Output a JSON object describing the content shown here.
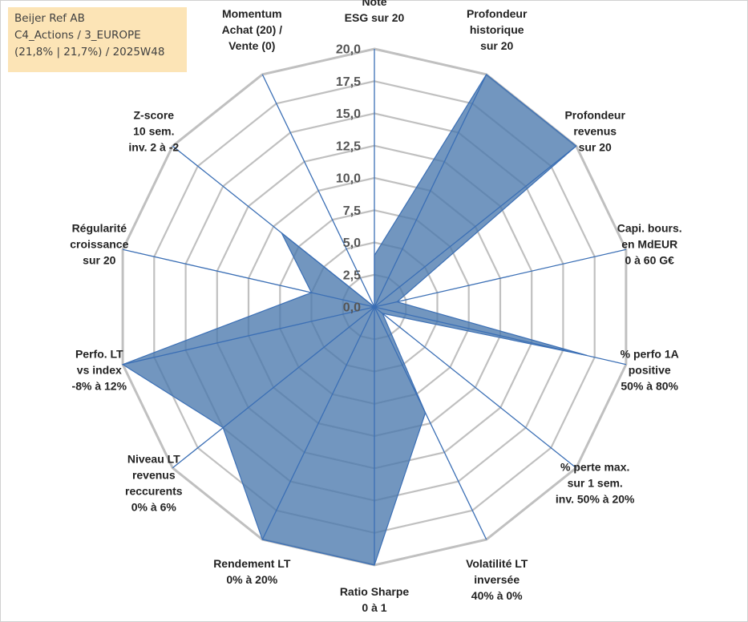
{
  "info": {
    "line1": "Beijer Ref AB",
    "line2": "C4_Actions / 3_EUROPE",
    "line3": "(21,8% | 21,7%) / 2025W48"
  },
  "chart_data": {
    "type": "radar",
    "title": "",
    "scale": {
      "min": 0,
      "max": 20,
      "step": 2.5
    },
    "tick_labels": [
      "0,0",
      "2,5",
      "5,0",
      "7,5",
      "10,0",
      "12,5",
      "15,0",
      "17,5",
      "20,0"
    ],
    "axes": [
      {
        "label": [
          "Note",
          "ESG sur 20"
        ],
        "value": 4.0
      },
      {
        "label": [
          "Profondeur",
          "historique",
          "sur 20"
        ],
        "value": 20.0
      },
      {
        "label": [
          "Profondeur",
          "revenus",
          "sur 20"
        ],
        "value": 20.0
      },
      {
        "label": [
          "Capi. bours.",
          "en MdEUR",
          "0 à 60 G€"
        ],
        "value": 1.8
      },
      {
        "label": [
          "% perfo 1A",
          "positive",
          "50% à 80%"
        ],
        "value": 16.9
      },
      {
        "label": [
          "% perte max.",
          "sur 1 sem.",
          "inv. 50% à 20%"
        ],
        "value": 0.8
      },
      {
        "label": [
          "Volatilité LT",
          "inversée",
          "40% à 0%"
        ],
        "value": 9.1
      },
      {
        "label": [
          "Ratio Sharpe",
          "0 à 1"
        ],
        "value": 20.0
      },
      {
        "label": [
          "Rendement LT",
          "0% à 20%"
        ],
        "value": 20.0
      },
      {
        "label": [
          "Niveau LT",
          "revenus",
          "reccurents",
          "0% à 6%"
        ],
        "value": 15.0
      },
      {
        "label": [
          "Perfo. LT",
          "vs index",
          "-8% à 12%"
        ],
        "value": 20.0
      },
      {
        "label": [
          "Régularité",
          "croissance",
          "sur 20"
        ],
        "value": 5.0
      },
      {
        "label": [
          "Z-score",
          "10 sem.",
          "inv. 2 à -2"
        ],
        "value": 9.2
      },
      {
        "label": [
          "Momentum",
          "Achat (20) /",
          "Vente (0)"
        ],
        "value": 0.0
      }
    ],
    "colors": {
      "fill": "#4a78ad",
      "line": "#3b6fb5",
      "grid": "#c0c0c0",
      "spoke": "#3b6fb5"
    }
  }
}
